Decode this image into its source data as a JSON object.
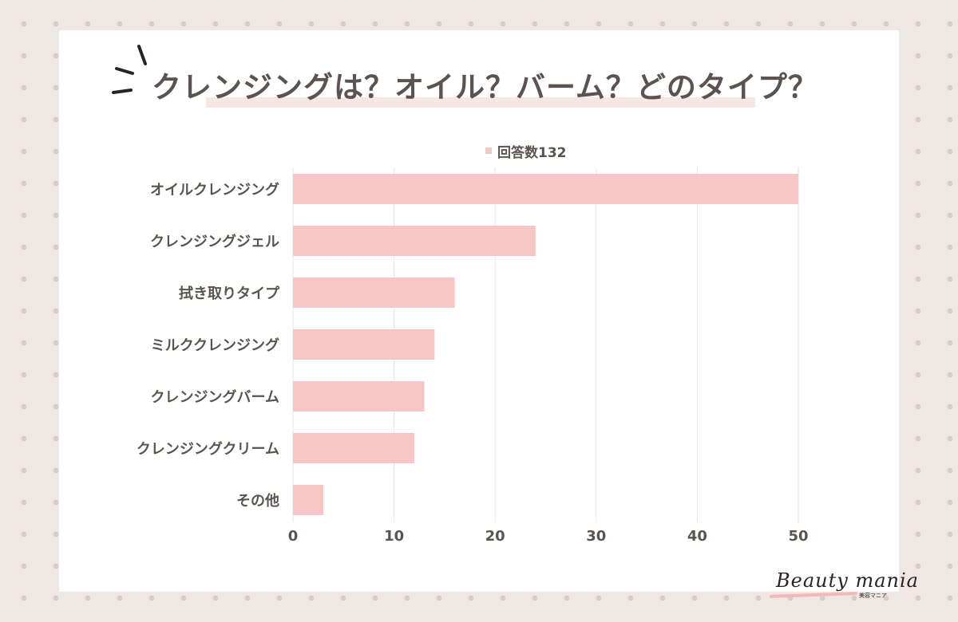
{
  "title": "クレンジングは？オイル？バーム？どのタイプ？",
  "brand": {
    "name": "Beauty mania",
    "subtitle": "美容マニア"
  },
  "colors": {
    "bar": "#f6c6c6",
    "text": "#5c5350",
    "grid": "#e6e6e6",
    "underline": "#f6e6e4"
  },
  "chart_data": {
    "type": "bar",
    "orientation": "horizontal",
    "legend": "回答数132",
    "legend_position": "top",
    "categories": [
      "オイルクレンジング",
      "クレンジングジェル",
      "拭き取りタイプ",
      "ミルククレンジング",
      "クレンジングバーム",
      "クレンジングクリーム",
      "その他"
    ],
    "values": [
      50,
      24,
      16,
      14,
      13,
      12,
      3
    ],
    "xlim": [
      0,
      50
    ],
    "xticks": [
      0,
      10,
      20,
      30,
      40,
      50
    ],
    "grid": true
  }
}
